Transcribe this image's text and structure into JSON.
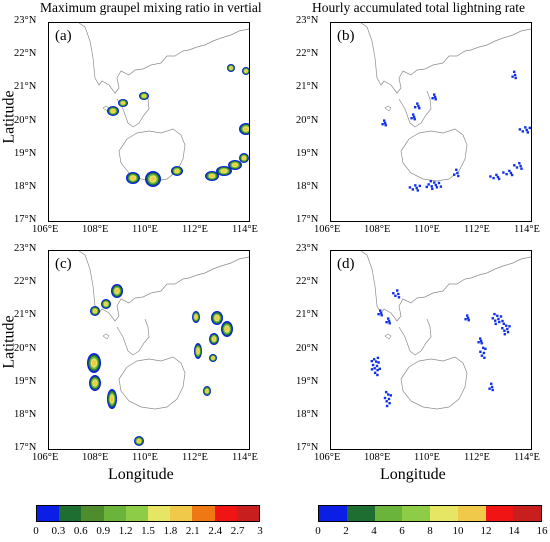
{
  "titles": {
    "left": "Maximum graupel mixing ratio in vertial",
    "right": "Hourly accumulated total lightning rate"
  },
  "axis": {
    "ylabel": "Latitude",
    "xlabel": "Longitude",
    "lon_ticks": [
      "106°E",
      "108°E",
      "110°E",
      "112°E",
      "114°E"
    ],
    "lat_ticks": [
      "23°N",
      "22°N",
      "21°N",
      "20°N",
      "19°N",
      "18°N",
      "17°N"
    ]
  },
  "panels": [
    {
      "label": "(a)",
      "kind": "graupel"
    },
    {
      "label": "(b)",
      "kind": "lightning"
    },
    {
      "label": "(c)",
      "kind": "graupel"
    },
    {
      "label": "(d)",
      "kind": "lightning"
    }
  ],
  "colorbar_left": {
    "labels": [
      "0",
      "0.3",
      "0.6",
      "0.9",
      "1.2",
      "1.5",
      "1.8",
      "2.1",
      "2.4",
      "2.7",
      "3"
    ],
    "colors": [
      "#0a1ee6",
      "#1e6e32",
      "#4e8c2e",
      "#6ab43c",
      "#8ccc46",
      "#e6e664",
      "#f0c84a",
      "#f07814",
      "#f01414",
      "#c81e1e"
    ]
  },
  "colorbar_right": {
    "labels": [
      "0",
      "2",
      "4",
      "6",
      "8",
      "10",
      "12",
      "14",
      "16"
    ],
    "colors": [
      "#0a1ee6",
      "#1e6e32",
      "#6ab43c",
      "#8ccc46",
      "#e6e664",
      "#f0c84a",
      "#f01414",
      "#c81e1e"
    ]
  }
}
